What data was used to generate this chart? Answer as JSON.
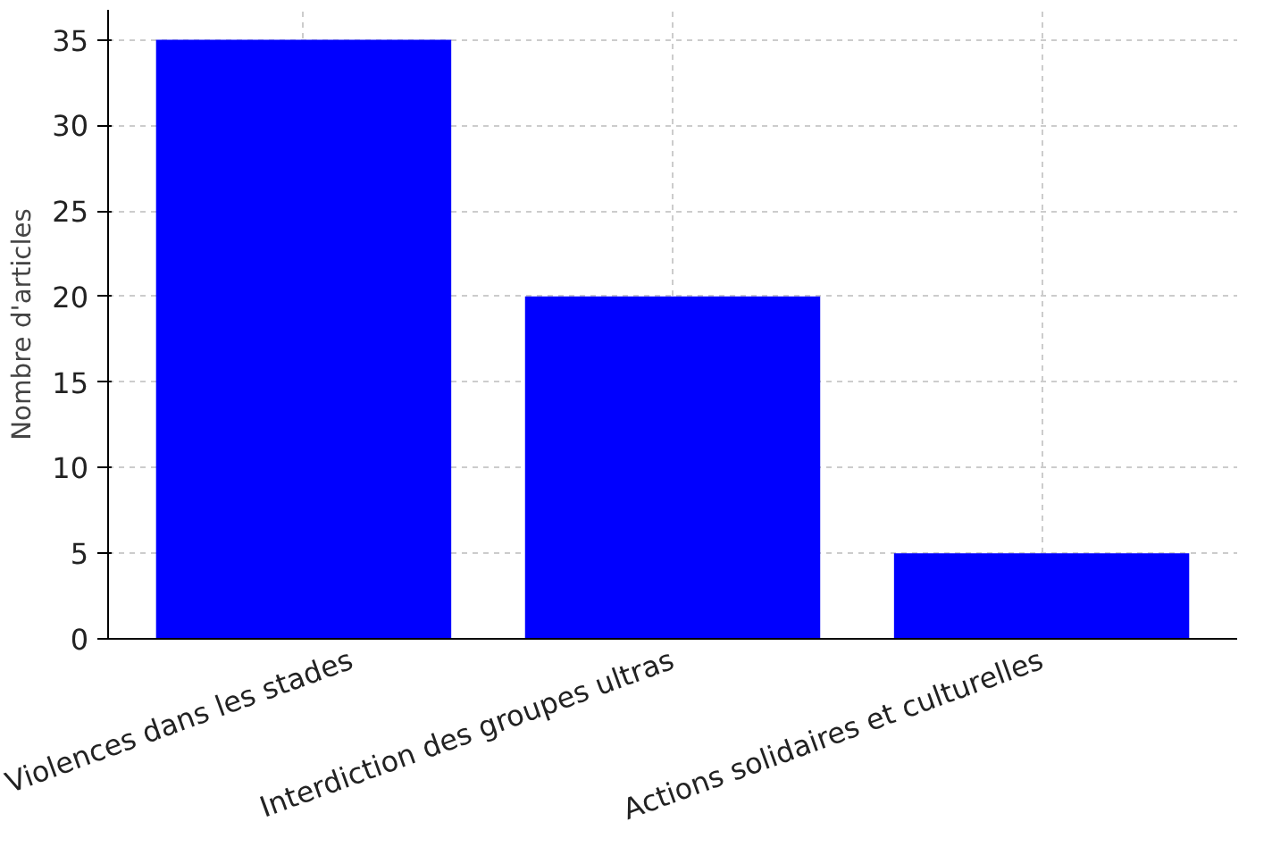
{
  "chart_data": {
    "type": "bar",
    "ylabel": "Nombre d'articles",
    "categories": [
      "Violences dans les stades",
      "Interdiction des groupes ultras",
      "Actions solidaires et culturelles"
    ],
    "values": [
      35,
      20,
      5
    ],
    "color": "#0000ff",
    "ylim": [
      0,
      36.75
    ],
    "yticks": [
      0,
      5,
      10,
      15,
      20,
      25,
      30,
      35
    ],
    "grid": true
  }
}
